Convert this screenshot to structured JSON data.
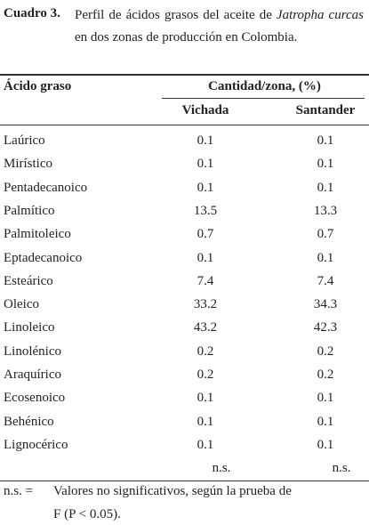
{
  "caption": {
    "label": "Cuadro 3.",
    "text": "Perfil de ácidos grasos del aceite de ",
    "species": "Jatropha curcas",
    "text_end": " en dos zonas de producción en Colombia."
  },
  "table": {
    "header": {
      "first": "Ácido graso",
      "group": "Cantidad/zona, (%)",
      "columns": [
        "Vichada",
        "Santander"
      ]
    },
    "rows": [
      [
        "Laúrico",
        "0.1",
        "0.1"
      ],
      [
        "Mirístico",
        "0.1",
        "0.1"
      ],
      [
        "Pentadecanoico",
        "0.1",
        "0.1"
      ],
      [
        "Palmítico",
        "13.5",
        "13.3"
      ],
      [
        "Palmitoleico",
        "0.7",
        "0.7"
      ],
      [
        "Eptadecanoico",
        "0.1",
        "0.1"
      ],
      [
        "Esteárico",
        "7.4",
        "7.4"
      ],
      [
        "Oleico",
        "33.2",
        "34.3"
      ],
      [
        "Linoleico",
        "43.2",
        "42.3"
      ],
      [
        "Linolénico",
        "0.2",
        "0.2"
      ],
      [
        "Araquírico",
        "0.2",
        "0.2"
      ],
      [
        "Ecosenoico",
        "0.1",
        "0.1"
      ],
      [
        "Behénico",
        "0.1",
        "0.1"
      ],
      [
        "Lignocérico",
        "0.1",
        "0.1"
      ]
    ],
    "significance": [
      "n.s.",
      "n.s."
    ]
  },
  "footnote": {
    "abbr": "n.s. =",
    "lines": [
      "Valores no significativos, según la prueba de",
      "F (P < 0.05)."
    ]
  }
}
